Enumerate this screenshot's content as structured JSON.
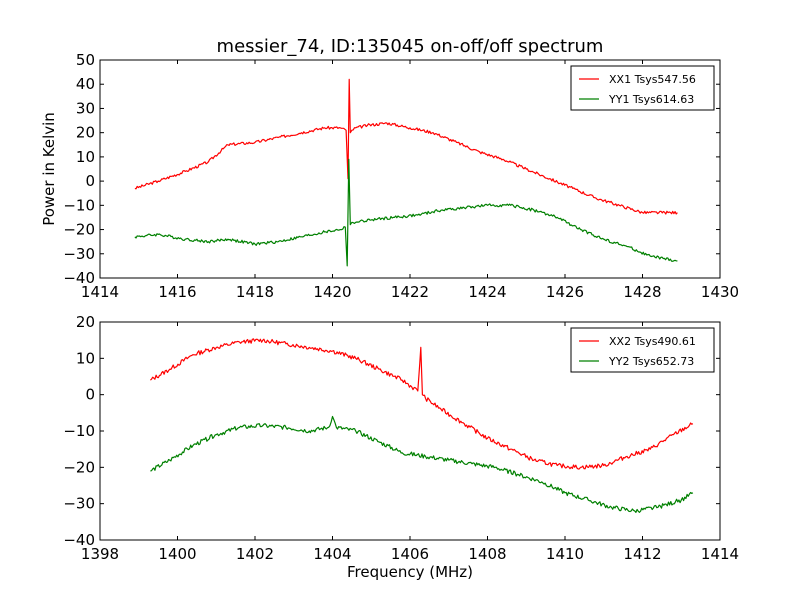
{
  "chart_data": [
    {
      "type": "line",
      "title": "messier_74, ID:135045 on-off/off spectrum",
      "xlabel": "",
      "ylabel": "Power in Kelvin",
      "xlim": [
        1414,
        1430
      ],
      "ylim": [
        -40,
        50
      ],
      "xticks": [
        1414,
        1416,
        1418,
        1420,
        1422,
        1424,
        1426,
        1428,
        1430
      ],
      "yticks": [
        -40,
        -30,
        -20,
        -10,
        0,
        10,
        20,
        30,
        40,
        50
      ],
      "grid": false,
      "legend": "top-right",
      "series": [
        {
          "name": "XX1 Tsys547.56",
          "color": "#ff0000",
          "x": [
            1414.9,
            1415.5,
            1416.2,
            1416.8,
            1417.3,
            1418.0,
            1418.6,
            1419.2,
            1419.8,
            1420.2,
            1420.35,
            1420.4,
            1420.43,
            1420.46,
            1420.5,
            1420.6,
            1420.9,
            1421.4,
            1422.0,
            1422.6,
            1423.2,
            1423.8,
            1424.4,
            1425.0,
            1425.6,
            1426.2,
            1426.8,
            1427.4,
            1428.0,
            1428.9
          ],
          "y": [
            -3,
            0,
            4,
            8,
            15,
            16,
            18,
            20,
            22,
            22,
            21,
            1,
            42,
            20,
            21,
            22,
            23,
            24,
            22,
            20,
            16,
            12,
            9,
            5,
            1,
            -3,
            -7,
            -10,
            -13,
            -13
          ]
        },
        {
          "name": "YY1 Tsys614.63",
          "color": "#008000",
          "x": [
            1414.9,
            1415.5,
            1416.2,
            1416.8,
            1417.3,
            1418.0,
            1418.6,
            1419.2,
            1419.8,
            1420.2,
            1420.33,
            1420.38,
            1420.42,
            1420.46,
            1420.5,
            1420.6,
            1421.0,
            1421.6,
            1422.2,
            1422.8,
            1423.4,
            1424.0,
            1424.6,
            1425.2,
            1425.8,
            1426.4,
            1427.0,
            1427.6,
            1428.2,
            1428.9
          ],
          "y": [
            -23,
            -22,
            -24,
            -25,
            -24,
            -26,
            -25,
            -23,
            -21,
            -20,
            -19,
            -35,
            9,
            -18,
            -17,
            -17,
            -16,
            -15,
            -14,
            -12,
            -11,
            -10,
            -10,
            -12,
            -15,
            -20,
            -24,
            -27,
            -31,
            -33
          ]
        }
      ]
    },
    {
      "type": "line",
      "title": "",
      "xlabel": "Frequency (MHz)",
      "ylabel": "",
      "xlim": [
        1398,
        1414
      ],
      "ylim": [
        -40,
        20
      ],
      "xticks": [
        1398,
        1400,
        1402,
        1404,
        1406,
        1408,
        1410,
        1412,
        1414
      ],
      "yticks": [
        -40,
        -30,
        -20,
        -10,
        0,
        10,
        20
      ],
      "grid": false,
      "legend": "top-right",
      "series": [
        {
          "name": "XX2 Tsys490.61",
          "color": "#ff0000",
          "x": [
            1399.3,
            1399.8,
            1400.4,
            1401.0,
            1401.6,
            1402.2,
            1402.8,
            1403.4,
            1404.0,
            1404.6,
            1405.2,
            1405.8,
            1406.2,
            1406.28,
            1406.32,
            1406.4,
            1406.8,
            1407.4,
            1408.0,
            1408.6,
            1409.2,
            1409.8,
            1410.4,
            1411.0,
            1411.6,
            1412.2,
            1412.8,
            1413.3
          ],
          "y": [
            4,
            7,
            11,
            13,
            14.5,
            15,
            14,
            13,
            12,
            10,
            7,
            4,
            1,
            13,
            0,
            -1,
            -4,
            -8,
            -12,
            -15,
            -18,
            -19.5,
            -20,
            -19.5,
            -17,
            -15,
            -11,
            -8
          ]
        },
        {
          "name": "YY2 Tsys652.73",
          "color": "#008000",
          "x": [
            1399.3,
            1399.8,
            1400.4,
            1401.0,
            1401.6,
            1402.2,
            1402.8,
            1403.4,
            1403.9,
            1404.0,
            1404.1,
            1404.6,
            1405.2,
            1405.8,
            1406.4,
            1407.0,
            1407.6,
            1408.2,
            1408.8,
            1409.4,
            1410.0,
            1410.6,
            1411.2,
            1411.8,
            1412.4,
            1413.0,
            1413.3
          ],
          "y": [
            -21,
            -18,
            -14,
            -11,
            -9,
            -8.5,
            -9,
            -10,
            -9,
            -6,
            -9,
            -10,
            -13,
            -16,
            -17,
            -18,
            -19,
            -20,
            -22,
            -24,
            -27,
            -29,
            -31,
            -32,
            -31,
            -29,
            -27
          ]
        }
      ]
    }
  ]
}
